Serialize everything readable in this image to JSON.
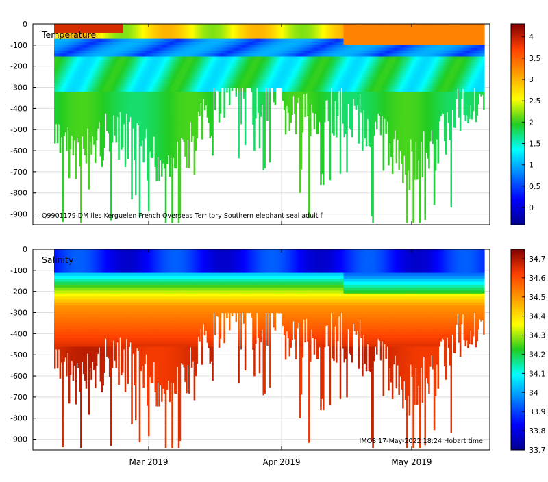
{
  "chart_data": [
    {
      "type": "heatmap",
      "panel": "temperature",
      "title": "Temperature",
      "annotation": "Q9901179 DM Iles Kerguelen French Overseas Territory Southern elephant seal adult f",
      "xlabel": "",
      "ylabel": "",
      "x_ticks": [
        "Mar 2019",
        "Apr 2019",
        "May 2019"
      ],
      "y_ticks": [
        0,
        -100,
        -200,
        -300,
        -400,
        -500,
        -600,
        -700,
        -800,
        -900
      ],
      "ylim": [
        -950,
        0
      ],
      "colorbar": {
        "ticks": [
          4,
          3.5,
          3,
          2.5,
          2,
          1.5,
          1,
          0.5,
          0
        ],
        "range": [
          -0.4,
          4.3
        ]
      },
      "data_summary": {
        "surface_0_to_80m": 2.6,
        "cold_layer_80_to_140m": 0.3,
        "upper_layer_150_to_350m": 1.8,
        "deep_400_to_900m": 2.0,
        "warm_surface_after_mid_april": 3.3,
        "dive_max_depth_range": [
          -950,
          -300
        ]
      }
    },
    {
      "type": "heatmap",
      "panel": "salinity",
      "title": "Salinity",
      "annotation": "IMOS 17-May-2022 18:24 Hobart time",
      "xlabel": "",
      "ylabel": "",
      "x_ticks": [
        "Mar 2019",
        "Apr 2019",
        "May 2019"
      ],
      "y_ticks": [
        0,
        -100,
        -200,
        -300,
        -400,
        -500,
        -600,
        -700,
        -800,
        -900
      ],
      "ylim": [
        -950,
        0
      ],
      "colorbar": {
        "ticks": [
          34.7,
          34.6,
          34.5,
          34.4,
          34.3,
          34.2,
          34.1,
          34,
          33.9,
          33.8,
          33.7
        ],
        "range": [
          33.7,
          34.75
        ]
      },
      "data_summary": {
        "surface_0_to_100m": 33.85,
        "halocline_150_to_250m": 34.3,
        "intermediate_250_to_400m": 34.55,
        "deep_500_to_900m": 34.68,
        "dive_max_depth_range": [
          -950,
          -300
        ]
      }
    }
  ]
}
